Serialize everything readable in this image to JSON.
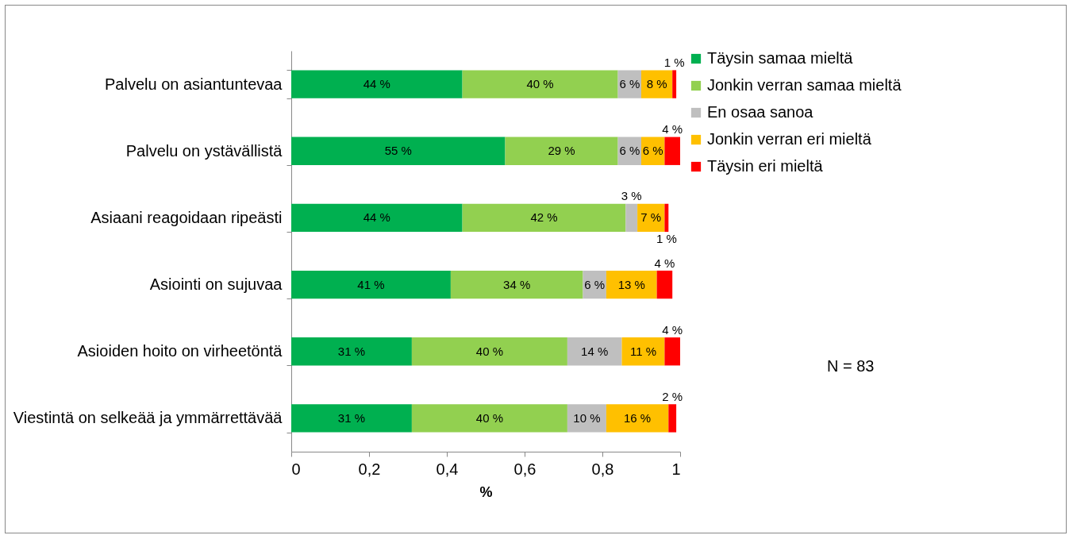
{
  "chart_data": {
    "type": "bar",
    "orientation": "horizontal",
    "stacked": true,
    "categories": [
      "Palvelu on asiantuntevaa",
      "Palvelu on ystävällistä",
      "Asiaani reagoidaan ripeästi",
      "Asiointi on sujuvaa",
      "Asioiden hoito on virheetöntä",
      "Viestintä on selkeää ja ymmärrettävää"
    ],
    "series": [
      {
        "name": "Täysin samaa mieltä",
        "color": "#00b050",
        "values": [
          0.44,
          0.55,
          0.44,
          0.41,
          0.31,
          0.31
        ],
        "value_labels": [
          "44 %",
          "55 %",
          "44 %",
          "41 %",
          "31 %",
          "31 %"
        ]
      },
      {
        "name": "Jonkin verran samaa mieltä",
        "color": "#92d050",
        "values": [
          0.4,
          0.29,
          0.42,
          0.34,
          0.4,
          0.4
        ],
        "value_labels": [
          "40 %",
          "29 %",
          "42 %",
          "34 %",
          "40 %",
          "40 %"
        ]
      },
      {
        "name": "En osaa sanoa",
        "color": "#bfbfbf",
        "values": [
          0.06,
          0.06,
          0.03,
          0.06,
          0.14,
          0.1
        ],
        "value_labels": [
          "6 %",
          "6 %",
          "3 %",
          "6 %",
          "14 %",
          "10 %"
        ]
      },
      {
        "name": "Jonkin verran eri mieltä",
        "color": "#ffc000",
        "values": [
          0.08,
          0.06,
          0.07,
          0.13,
          0.11,
          0.16
        ],
        "value_labels": [
          "8 %",
          "6 %",
          "7 %",
          "13 %",
          "11 %",
          "16 %"
        ]
      },
      {
        "name": "Täysin eri mieltä",
        "color": "#ff0000",
        "values": [
          0.01,
          0.04,
          0.01,
          0.04,
          0.04,
          0.02
        ],
        "value_labels": [
          "1 %",
          "4 %",
          "1 %",
          "4 %",
          "4 %",
          "2 %"
        ]
      }
    ],
    "xlim": [
      0,
      1
    ],
    "xticks": [
      0,
      {
        "value": 0.2,
        "label": "0,2"
      },
      {
        "value": 0.4,
        "label": "0,4"
      },
      {
        "value": 0.6,
        "label": "0,6"
      },
      {
        "value": 0.8,
        "label": "0,8"
      },
      1
    ],
    "xlabel": "%",
    "grid": false,
    "legend": "top right",
    "annotations": [
      "N = 83"
    ]
  }
}
